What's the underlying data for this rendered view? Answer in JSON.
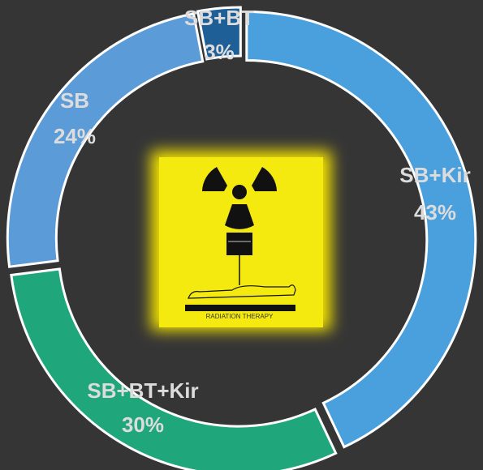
{
  "chart_data": {
    "type": "donut",
    "categories": [
      "SB+Kir",
      "SB+BT+Kir",
      "SB",
      "SB+BT"
    ],
    "values": [
      43,
      30,
      24,
      3
    ],
    "value_labels": [
      "43%",
      "30%",
      "24%",
      "3%"
    ],
    "colors": [
      "#4a9fdd",
      "#1fa67a",
      "#5b9bd8",
      "#1f5f98"
    ],
    "annotations": [
      "RADIATION THERAPY"
    ]
  }
}
